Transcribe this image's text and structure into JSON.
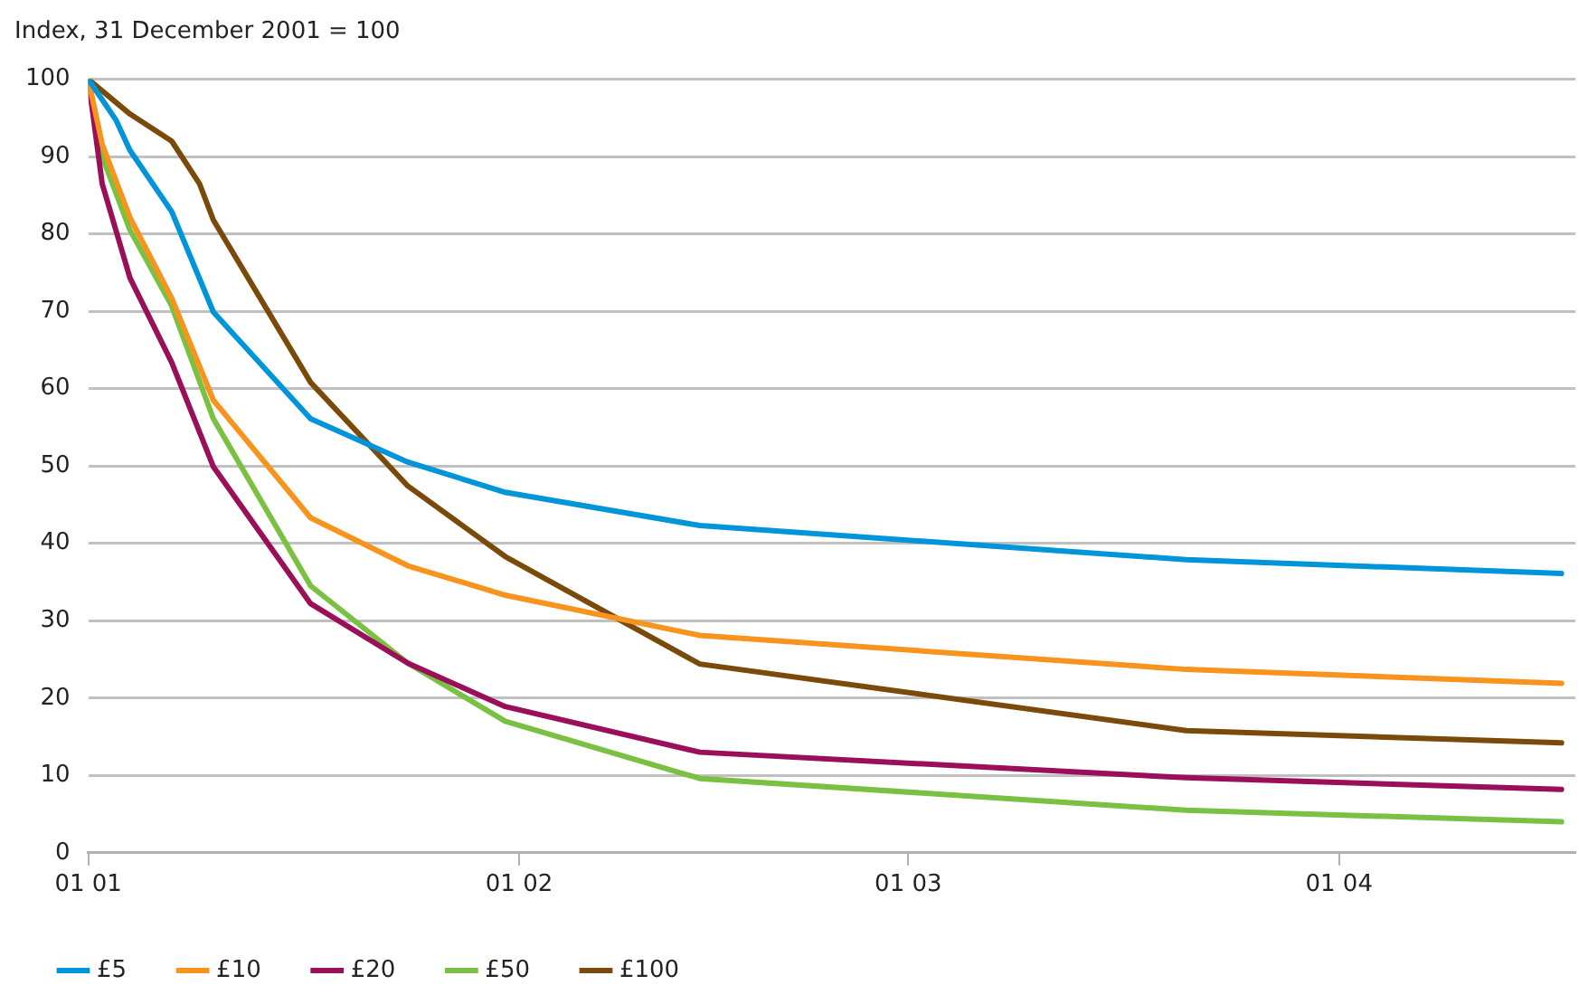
{
  "chart_data": {
    "type": "line",
    "ylabel": "Index, 31 December 2001 = 100",
    "xlim": [
      "--01-01",
      "--04-18"
    ],
    "xticks": [
      {
        "value": "--01-01",
        "label": "01 01"
      },
      {
        "value": "--02-01",
        "label": "01 02"
      },
      {
        "value": "--03-01",
        "label": "01 03"
      },
      {
        "value": "--04-01",
        "label": "01 04"
      }
    ],
    "ylim": [
      0,
      100
    ],
    "yticks": [
      0,
      10,
      20,
      30,
      40,
      50,
      60,
      70,
      80,
      90,
      100
    ],
    "grid": "y",
    "legend": "bottom",
    "marker": "none",
    "line_style": "solid",
    "series": [
      {
        "name": "£5",
        "color": "#0095d9",
        "x": [
          "--01-01",
          "--01-03",
          "--01-04",
          "--01-07",
          "--01-10",
          "--01-17",
          "--01-24",
          "--01-31",
          "--02-14",
          "--03-21",
          "--04-17"
        ],
        "values": [
          100,
          94.7,
          90.8,
          82.9,
          69.9,
          56.1,
          50.5,
          46.6,
          42.3,
          37.9,
          36.1
        ]
      },
      {
        "name": "£10",
        "color": "#f7941d",
        "x": [
          "--01-01",
          "--01-02",
          "--01-04",
          "--01-07",
          "--01-10",
          "--01-17",
          "--01-24",
          "--01-31",
          "--02-14",
          "--03-21",
          "--04-17"
        ],
        "values": [
          100,
          91.6,
          82.1,
          71.7,
          58.5,
          43.3,
          37.1,
          33.3,
          28.1,
          23.7,
          21.9
        ]
      },
      {
        "name": "£20",
        "color": "#990f5a",
        "x": [
          "--01-01",
          "--01-02",
          "--01-04",
          "--01-07",
          "--01-10",
          "--01-17",
          "--01-24",
          "--01-31",
          "--02-14",
          "--03-21",
          "--04-17"
        ],
        "values": [
          100,
          86.5,
          74.3,
          63.4,
          49.9,
          32.2,
          24.5,
          18.9,
          13.0,
          9.7,
          8.2
        ]
      },
      {
        "name": "£50",
        "color": "#7ac143",
        "x": [
          "--01-01",
          "--01-02",
          "--01-04",
          "--01-07",
          "--01-10",
          "--01-17",
          "--01-24",
          "--01-31",
          "--02-14",
          "--03-21",
          "--04-17"
        ],
        "values": [
          100,
          90,
          80.5,
          70.7,
          56.1,
          34.5,
          24.5,
          17.0,
          9.6,
          5.5,
          4.0
        ]
      },
      {
        "name": "£100",
        "color": "#7a4a0a",
        "x": [
          "--01-01",
          "--01-04",
          "--01-07",
          "--01-09",
          "--01-10",
          "--01-17",
          "--01-24",
          "--01-31",
          "--02-14",
          "--03-21",
          "--04-17"
        ],
        "values": [
          100,
          95.5,
          92,
          86.5,
          81.8,
          60.8,
          47.4,
          38.3,
          24.4,
          15.8,
          14.2
        ]
      }
    ]
  }
}
